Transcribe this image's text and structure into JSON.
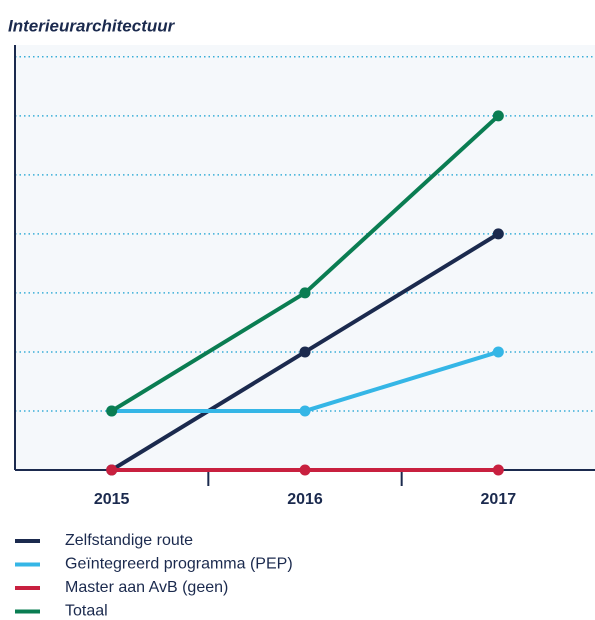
{
  "chart_data": {
    "type": "line",
    "title": "Interieurarchitectuur",
    "categories": [
      "2015",
      "2016",
      "2017"
    ],
    "series": [
      {
        "name": "Zelfstandige route",
        "color": "#1b2a4e",
        "values": [
          0,
          2,
          4
        ]
      },
      {
        "name": "Geïntegreerd programma (PEP)",
        "color": "#35b6e6",
        "values": [
          1,
          1,
          2
        ]
      },
      {
        "name": "Master aan AvB (geen)",
        "color": "#c8203f",
        "values": [
          0,
          0,
          0
        ]
      },
      {
        "name": "Totaal",
        "color": "#0a7d52",
        "values": [
          1,
          3,
          6
        ]
      }
    ],
    "ylim": [
      0,
      7.2
    ],
    "yticks": [
      1,
      2,
      3,
      4,
      5,
      6,
      7
    ],
    "grid": true,
    "legend": "bottom"
  }
}
